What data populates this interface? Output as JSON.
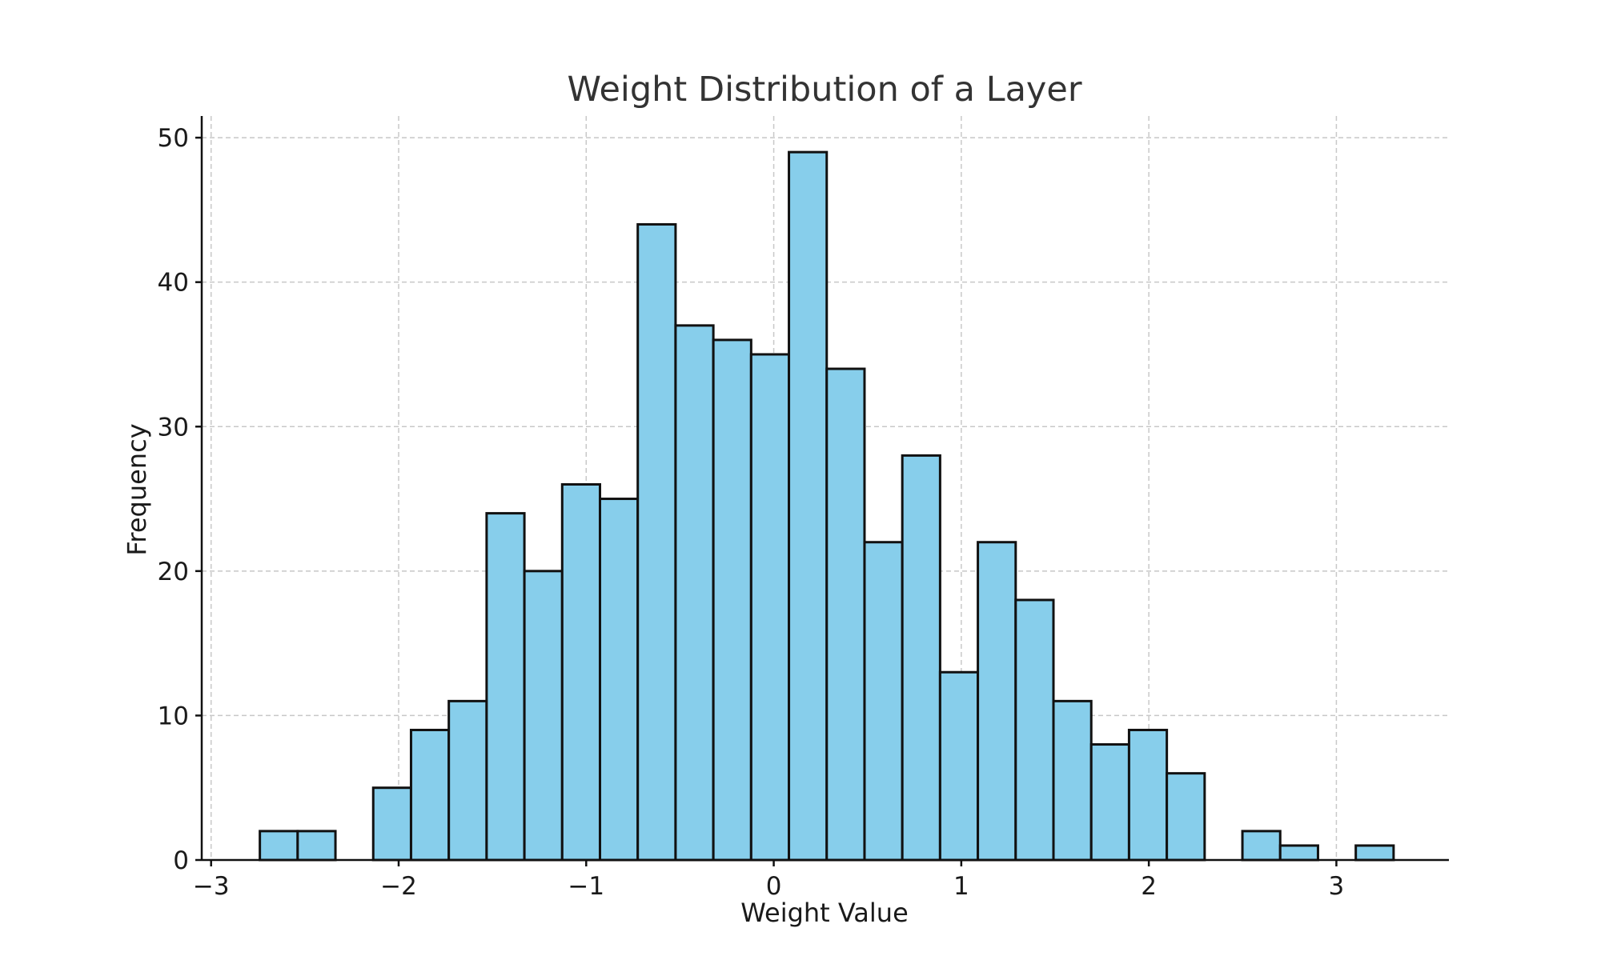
{
  "chart_data": {
    "type": "bar",
    "subtype": "histogram",
    "title": "Weight Distribution of a Layer",
    "xlabel": "Weight Value",
    "ylabel": "Frequency",
    "xlim": [
      -3.05,
      3.6
    ],
    "ylim": [
      0,
      51.5
    ],
    "bin_start": -2.74,
    "bin_width": 0.2015,
    "values": [
      2,
      2,
      0,
      5,
      9,
      11,
      24,
      20,
      26,
      25,
      44,
      37,
      36,
      35,
      49,
      34,
      22,
      28,
      13,
      22,
      18,
      11,
      8,
      9,
      6,
      0,
      2,
      1,
      0,
      1
    ],
    "xticks": [
      -3,
      -2,
      -1,
      0,
      1,
      2,
      3
    ],
    "xtick_labels": [
      "−3",
      "−2",
      "−1",
      "0",
      "1",
      "2",
      "3"
    ],
    "yticks": [
      0,
      10,
      20,
      30,
      40,
      50
    ],
    "ytick_labels": [
      "0",
      "10",
      "20",
      "30",
      "40",
      "50"
    ],
    "grid": true,
    "bar_color": "#87ceeb",
    "edge_color": "#111111"
  }
}
